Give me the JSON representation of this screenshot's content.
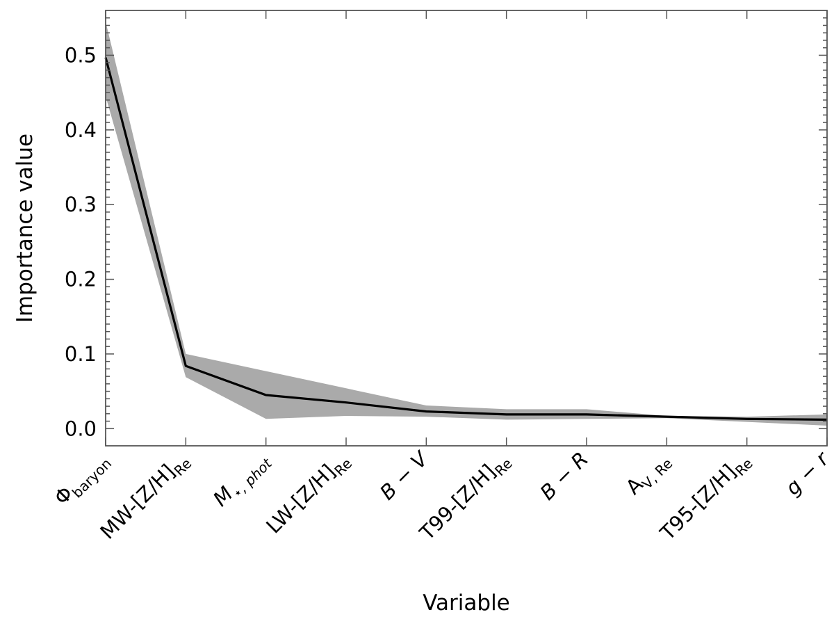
{
  "chart_data": {
    "type": "line",
    "title": "",
    "xlabel": "Variable",
    "ylabel": "Importance value",
    "ylim": [
      -0.023,
      0.56
    ],
    "yticks": [
      0.0,
      0.1,
      0.2,
      0.3,
      0.4,
      0.5
    ],
    "ytick_labels": [
      "0.0",
      "0.1",
      "0.2",
      "0.3",
      "0.4",
      "0.5"
    ],
    "grid": false,
    "legend": "none",
    "categories": [
      {
        "base": "Φ",
        "sub": "baryon",
        "italic": false
      },
      {
        "base": "MW-[Z/H]",
        "sub": "Re",
        "italic": false
      },
      {
        "base": "M",
        "sub": "⋆, phot",
        "italic": true
      },
      {
        "base": "LW-[Z/H]",
        "sub": "Re",
        "italic": false
      },
      {
        "base": "B − V",
        "sub": "",
        "italic": true
      },
      {
        "base": "T99-[Z/H]",
        "sub": "Re",
        "italic": false
      },
      {
        "base": "B − R",
        "sub": "",
        "italic": true
      },
      {
        "base": "A",
        "sub": "V, Re",
        "italic": false
      },
      {
        "base": "T95-[Z/H]",
        "sub": "Re",
        "italic": false
      },
      {
        "base": "g − r",
        "sub": "",
        "italic": true
      }
    ],
    "series": [
      {
        "values": [
          0.497,
          0.084,
          0.045,
          0.035,
          0.023,
          0.019,
          0.019,
          0.016,
          0.013,
          0.012
        ],
        "lower": [
          0.445,
          0.069,
          0.013,
          0.017,
          0.016,
          0.012,
          0.013,
          0.014,
          0.009,
          0.004
        ],
        "upper": [
          0.545,
          0.1,
          0.077,
          0.054,
          0.031,
          0.026,
          0.026,
          0.017,
          0.016,
          0.019
        ]
      }
    ],
    "colors": {
      "line": "#000000",
      "band": "#aaaaaa",
      "axes": "#555555"
    }
  }
}
